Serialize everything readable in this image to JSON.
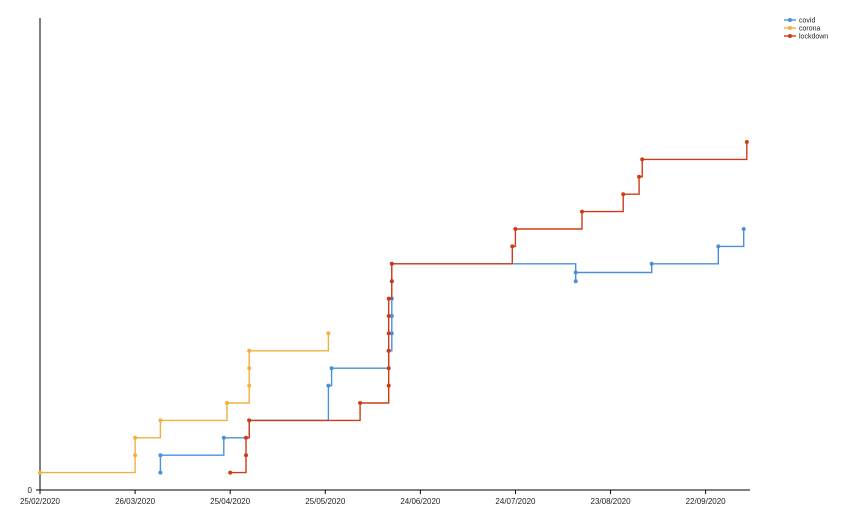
{
  "chart_data": {
    "type": "line",
    "step": true,
    "x_type": "date",
    "x_ticks": [
      "25/02/2020",
      "26/03/2020",
      "25/04/2020",
      "25/05/2020",
      "24/06/2020",
      "24/07/2020",
      "23/08/2020",
      "22/09/2020"
    ],
    "y_ticks": [
      "0"
    ],
    "ylim": [
      0,
      25
    ],
    "legend_position": "top-right",
    "grid": false,
    "series": [
      {
        "name": "covid",
        "color": "#4a90d9",
        "points": [
          [
            "2020-04-03",
            1
          ],
          [
            "2020-04-03",
            2
          ],
          [
            "2020-04-23",
            3
          ],
          [
            "2020-05-01",
            4
          ],
          [
            "2020-05-26",
            6
          ],
          [
            "2020-05-27",
            7
          ],
          [
            "2020-06-14",
            8
          ],
          [
            "2020-06-15",
            9
          ],
          [
            "2020-06-15",
            10
          ],
          [
            "2020-06-15",
            11
          ],
          [
            "2020-06-15",
            12
          ],
          [
            "2020-06-15",
            13
          ],
          [
            "2020-08-12",
            12
          ],
          [
            "2020-08-12",
            12.5
          ],
          [
            "2020-09-05",
            13
          ],
          [
            "2020-09-26",
            14
          ],
          [
            "2020-10-04",
            15
          ]
        ]
      },
      {
        "name": "corona",
        "color": "#f0b040",
        "points": [
          [
            "2020-02-25",
            1
          ],
          [
            "2020-03-26",
            2
          ],
          [
            "2020-03-26",
            3
          ],
          [
            "2020-04-03",
            4
          ],
          [
            "2020-04-24",
            5
          ],
          [
            "2020-05-01",
            6
          ],
          [
            "2020-05-01",
            7
          ],
          [
            "2020-05-01",
            8
          ],
          [
            "2020-05-26",
            9
          ]
        ]
      },
      {
        "name": "lockdown",
        "color": "#cc3d17",
        "points": [
          [
            "2020-04-25",
            1
          ],
          [
            "2020-04-30",
            2
          ],
          [
            "2020-04-30",
            3
          ],
          [
            "2020-05-01",
            4
          ],
          [
            "2020-06-05",
            5
          ],
          [
            "2020-06-14",
            6
          ],
          [
            "2020-06-14",
            7
          ],
          [
            "2020-06-14",
            8
          ],
          [
            "2020-06-14",
            9
          ],
          [
            "2020-06-14",
            10
          ],
          [
            "2020-06-14",
            11
          ],
          [
            "2020-06-15",
            12
          ],
          [
            "2020-06-15",
            13
          ],
          [
            "2020-07-23",
            14
          ],
          [
            "2020-07-24",
            15
          ],
          [
            "2020-08-14",
            16
          ],
          [
            "2020-08-27",
            17
          ],
          [
            "2020-09-01",
            18
          ],
          [
            "2020-09-02",
            19
          ],
          [
            "2020-10-05",
            20
          ]
        ]
      }
    ]
  }
}
